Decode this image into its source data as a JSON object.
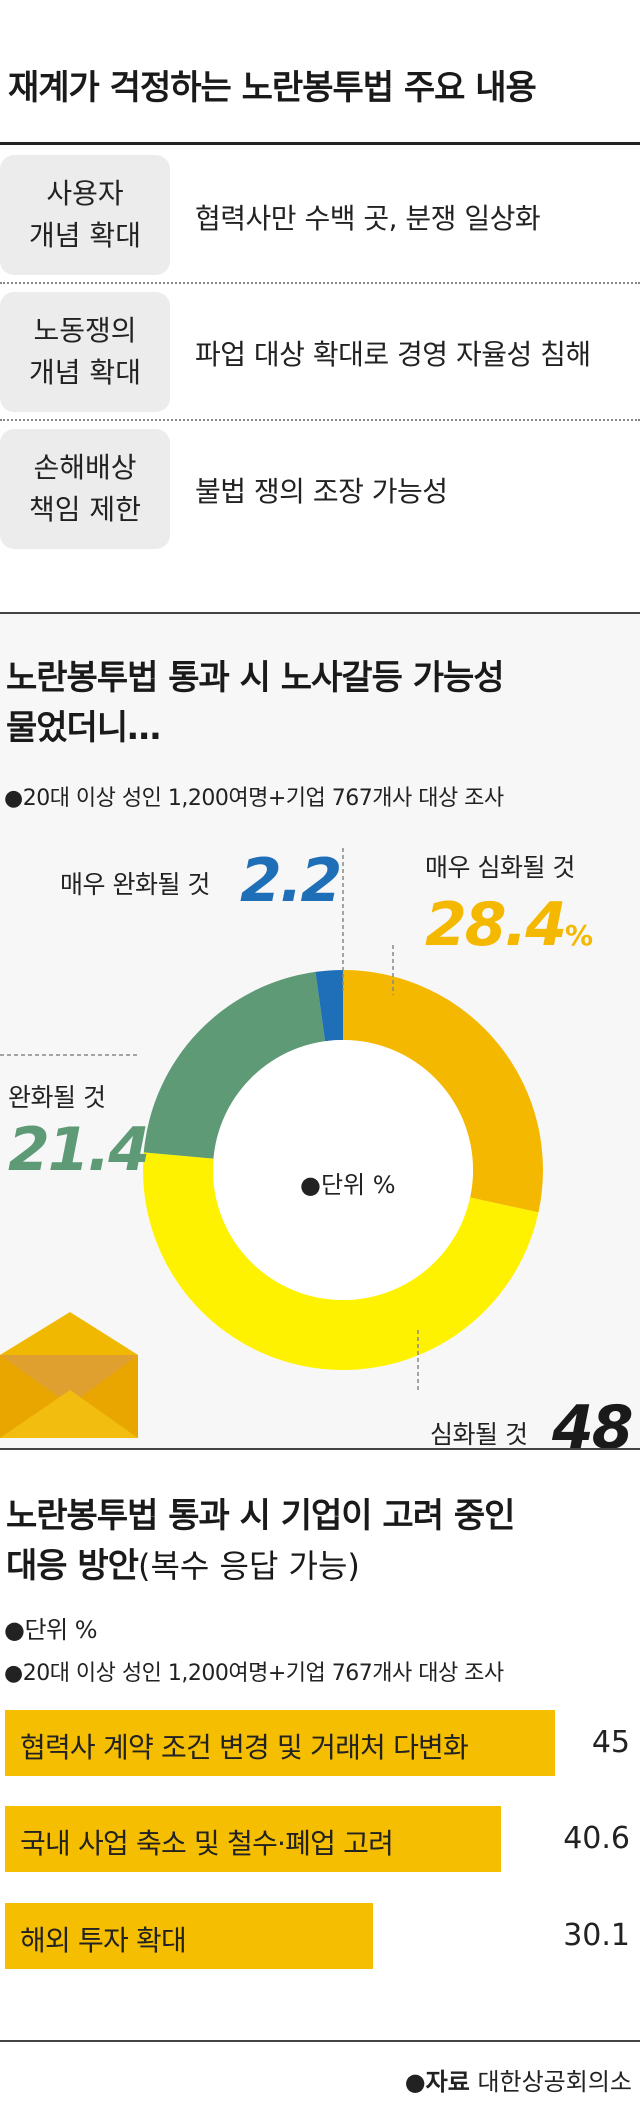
{
  "section1": {
    "title": "재계가 걱정하는 노란봉투법 주요 내용",
    "rows": [
      {
        "key": "사용자\n개념 확대",
        "value": "협력사만 수백 곳, 분쟁 일상화"
      },
      {
        "key": "노동쟁의\n개념 확대",
        "value": "파업 대상 확대로 경영 자율성 침해"
      },
      {
        "key": "손해배상\n책임 제한",
        "value": "불법 쟁의 조장 가능성"
      }
    ]
  },
  "section2": {
    "title_line1": "노란봉투법 통과 시 노사갈등 가능성",
    "title_line2": "물었더니…",
    "note": "●20대 이상 성인 1,200여명+기업 767개사 대상 조사",
    "unit": "●단위 %",
    "labels": {
      "very_ease": "매우 완화될 것",
      "very_worse": "매우 심화될 것",
      "ease": "완화될 것",
      "worse": "심화될 것",
      "pct": "%"
    },
    "values_text": {
      "very_ease": "2.2",
      "very_worse": "28.4",
      "ease": "21.4",
      "worse": "48"
    }
  },
  "section3": {
    "title_line1": "노란봉투법 통과 시 기업이 고려 중인",
    "title_line2_bold": "대응 방안",
    "title_line2_normal": "(복수 응답 가능)",
    "unit": "●단위 %",
    "note": "●20대 이상 성인 1,200여명+기업 767개사 대상 조사"
  },
  "source": {
    "bullet": "●자료",
    "name": "대한상공회의소"
  },
  "colors": {
    "very_worse": "#f5b800",
    "worse": "#fff200",
    "ease": "#5e9a76",
    "very_ease": "#1e6fb8",
    "bar": "#f5be00"
  },
  "chart_data": [
    {
      "type": "pie",
      "title": "노란봉투법 통과 시 노사갈등 가능성 물었더니…",
      "unit": "%",
      "categories": [
        "매우 심화될 것",
        "심화될 것",
        "완화될 것",
        "매우 완화될 것"
      ],
      "values": [
        28.4,
        48,
        21.4,
        2.2
      ]
    },
    {
      "type": "bar",
      "title": "노란봉투법 통과 시 기업이 고려 중인 대응 방안(복수 응답 가능)",
      "unit": "%",
      "categories": [
        "협력사 계약 조건 변경 및 거래처 다변화",
        "국내 사업 축소 및 철수·폐업 고려",
        "해외 투자 확대"
      ],
      "values": [
        45,
        40.6,
        30.1
      ],
      "values_text": [
        "45",
        "40.6",
        "30.1"
      ]
    }
  ]
}
